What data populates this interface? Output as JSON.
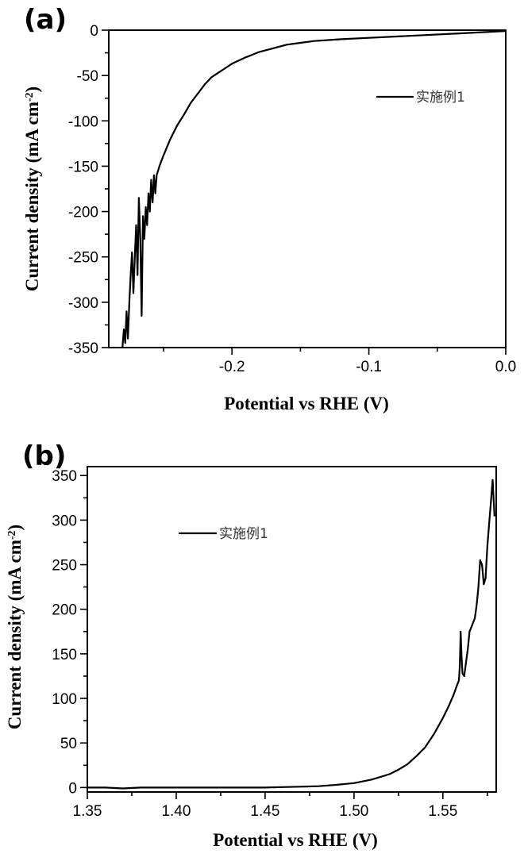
{
  "chart_data": [
    {
      "panel_label": "(a)",
      "type": "line",
      "xlabel": "Potential  vs RHE (V)",
      "ylabel": "Current density (mA cm",
      "ylabel_sup": "-2",
      "ylabel_end": ")",
      "xlim": [
        -0.29,
        0.0
      ],
      "ylim": [
        -350,
        0
      ],
      "xticks": [
        -0.2,
        -0.1,
        0.0
      ],
      "xtick_labels": [
        "-0.2",
        "-0.1",
        "0.0"
      ],
      "yticks": [
        0,
        -50,
        -100,
        -150,
        -200,
        -250,
        -300,
        -350
      ],
      "ytick_labels": [
        "0",
        "-50",
        "-100",
        "-150",
        "-200",
        "-250",
        "-300",
        "-350"
      ],
      "legend_position": "top-right",
      "grid": false,
      "series": [
        {
          "name": "实施例1",
          "color": "#000000",
          "x": [
            -0.28,
            -0.279,
            -0.278,
            -0.277,
            -0.276,
            -0.275,
            -0.274,
            -0.273,
            -0.272,
            -0.271,
            -0.27,
            -0.269,
            -0.268,
            -0.267,
            -0.266,
            -0.265,
            -0.264,
            -0.263,
            -0.262,
            -0.261,
            -0.26,
            -0.259,
            -0.258,
            -0.257,
            -0.256,
            -0.255,
            -0.253,
            -0.25,
            -0.245,
            -0.24,
            -0.235,
            -0.23,
            -0.225,
            -0.22,
            -0.215,
            -0.21,
            -0.205,
            -0.2,
            -0.19,
            -0.18,
            -0.17,
            -0.16,
            -0.15,
            -0.14,
            -0.12,
            -0.1,
            -0.08,
            -0.06,
            -0.04,
            -0.02,
            0.0
          ],
          "y": [
            -350,
            -330,
            -345,
            -310,
            -340,
            -300,
            -270,
            -245,
            -290,
            -250,
            -215,
            -270,
            -185,
            -230,
            -315,
            -205,
            -230,
            -195,
            -215,
            -180,
            -200,
            -165,
            -190,
            -160,
            -180,
            -160,
            -150,
            -138,
            -120,
            -105,
            -93,
            -80,
            -70,
            -60,
            -52,
            -47,
            -42,
            -37,
            -30,
            -24,
            -20,
            -16,
            -14,
            -12,
            -10,
            -8.5,
            -7,
            -5.5,
            -4,
            -2.5,
            -1
          ]
        }
      ]
    },
    {
      "panel_label": "(b)",
      "type": "line",
      "xlabel": "Potential  vs RHE (V)",
      "ylabel": "Current density (mA cm",
      "ylabel_sup": "-2",
      "ylabel_end": ")",
      "xlim": [
        1.35,
        1.58
      ],
      "ylim": [
        -5,
        360
      ],
      "xticks": [
        1.35,
        1.4,
        1.45,
        1.5,
        1.55
      ],
      "xtick_labels": [
        "1.35",
        "1.40",
        "1.45",
        "1.50",
        "1.55"
      ],
      "yticks": [
        0,
        50,
        100,
        150,
        200,
        250,
        300,
        350
      ],
      "ytick_labels": [
        "0",
        "50",
        "100",
        "150",
        "200",
        "250",
        "300",
        "350"
      ],
      "legend_position": "top-left",
      "grid": false,
      "series": [
        {
          "name": "实施例1",
          "color": "#000000",
          "x": [
            1.35,
            1.36,
            1.37,
            1.38,
            1.39,
            1.4,
            1.41,
            1.42,
            1.43,
            1.44,
            1.45,
            1.46,
            1.47,
            1.48,
            1.49,
            1.5,
            1.51,
            1.52,
            1.525,
            1.53,
            1.535,
            1.54,
            1.545,
            1.55,
            1.553,
            1.556,
            1.558,
            1.559,
            1.5595,
            1.56,
            1.5605,
            1.561,
            1.562,
            1.563,
            1.564,
            1.565,
            1.566,
            1.567,
            1.568,
            1.569,
            1.57,
            1.571,
            1.572,
            1.5725,
            1.573,
            1.574,
            1.575,
            1.576,
            1.577,
            1.578,
            1.579
          ],
          "y": [
            0,
            0,
            -1,
            0,
            0,
            0,
            0,
            0,
            0,
            0,
            0,
            0.5,
            1,
            1.5,
            3,
            5,
            9,
            15,
            20,
            26,
            35,
            45,
            60,
            78,
            90,
            104,
            115,
            120,
            135,
            175,
            148,
            128,
            125,
            140,
            155,
            175,
            180,
            185,
            190,
            205,
            225,
            255,
            250,
            240,
            228,
            235,
            270,
            295,
            320,
            345,
            305
          ]
        }
      ]
    }
  ]
}
